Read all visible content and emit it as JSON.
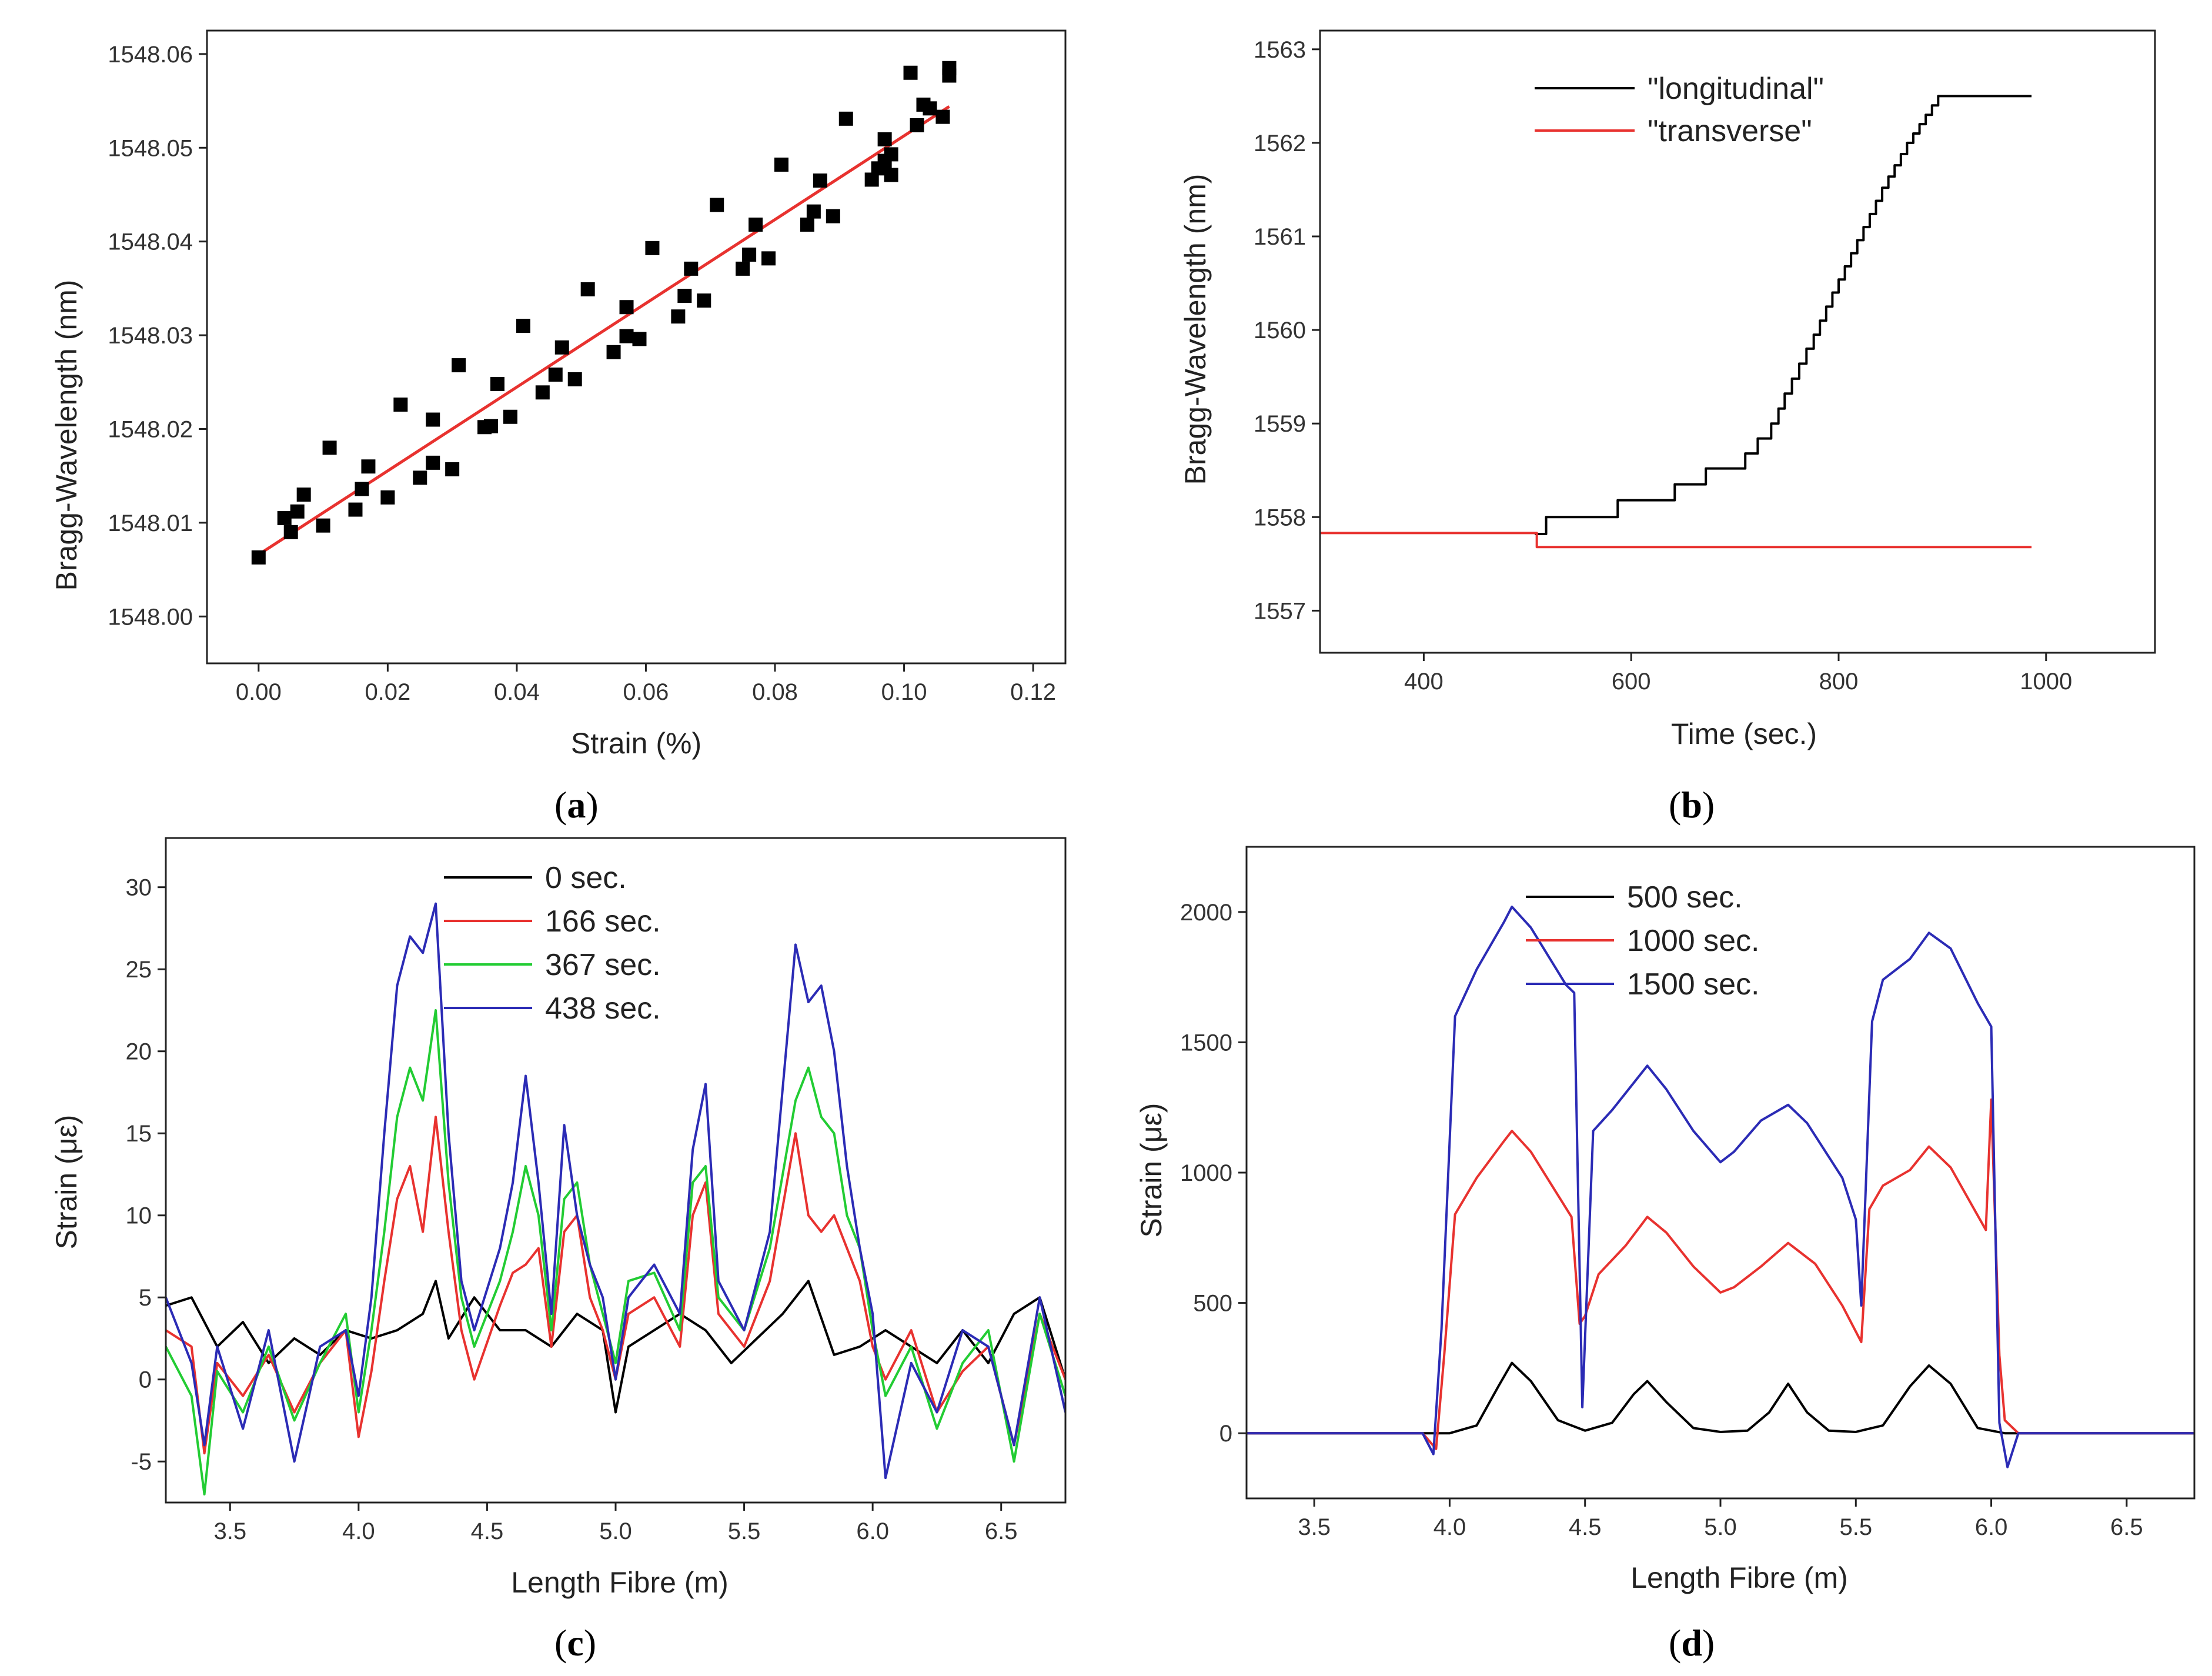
{
  "chart_data": [
    {
      "id": "a",
      "panel_label": "a",
      "type": "scatter",
      "title": "",
      "xlabel": "Strain (%)",
      "ylabel": "Bragg-Wavelength (nm)",
      "xlim": [
        -0.008,
        0.125
      ],
      "ylim": [
        1547.995,
        1548.0625
      ],
      "xticks": [
        0.0,
        0.02,
        0.04,
        0.06,
        0.08,
        0.1,
        0.12
      ],
      "xtick_labels": [
        "0.00",
        "0.02",
        "0.04",
        "0.06",
        "0.08",
        "0.10",
        "0.12"
      ],
      "yticks": [
        1548.0,
        1548.01,
        1548.02,
        1548.03,
        1548.04,
        1548.05,
        1548.06
      ],
      "ytick_labels": [
        "1548.00",
        "1548.01",
        "1548.02",
        "1548.03",
        "1548.04",
        "1548.05",
        "1548.06"
      ],
      "grid": false,
      "colors": {
        "points": "#000000",
        "fit": "#e8322f"
      },
      "fit_line": {
        "x": [
          0.0,
          0.107
        ],
        "y": [
          1548.0066,
          1548.0544
        ]
      },
      "points": {
        "x": [
          0.0,
          0.004,
          0.005,
          0.006,
          0.007,
          0.01,
          0.011,
          0.015,
          0.016,
          0.017,
          0.02,
          0.022,
          0.025,
          0.027,
          0.027,
          0.03,
          0.031,
          0.035,
          0.036,
          0.037,
          0.039,
          0.041,
          0.044,
          0.046,
          0.047,
          0.049,
          0.051,
          0.055,
          0.057,
          0.057,
          0.059,
          0.061,
          0.065,
          0.066,
          0.067,
          0.069,
          0.071,
          0.075,
          0.076,
          0.077,
          0.079,
          0.081,
          0.085,
          0.086,
          0.087,
          0.089,
          0.091,
          0.095,
          0.096,
          0.097,
          0.097,
          0.098,
          0.098,
          0.101,
          0.102,
          0.103,
          0.104,
          0.106,
          0.107,
          0.107
        ],
        "y": [
          1548.0063,
          1548.0105,
          1548.009,
          1548.0112,
          1548.013,
          1548.0097,
          1548.018,
          1548.0114,
          1548.0136,
          1548.016,
          1548.0127,
          1548.0226,
          1548.0148,
          1548.0164,
          1548.021,
          1548.0157,
          1548.0268,
          1548.0202,
          1548.0203,
          1548.0248,
          1548.0213,
          1548.031,
          1548.0239,
          1548.0258,
          1548.0287,
          1548.0253,
          1548.0349,
          1548.0282,
          1548.0299,
          1548.033,
          1548.0296,
          1548.0393,
          1548.032,
          1548.0342,
          1548.0371,
          1548.0337,
          1548.0439,
          1548.0371,
          1548.0386,
          1548.0418,
          1548.0382,
          1548.0482,
          1548.0418,
          1548.0432,
          1548.0465,
          1548.0427,
          1548.0531,
          1548.0466,
          1548.0478,
          1548.0509,
          1548.0486,
          1548.0471,
          1548.0493,
          1548.058,
          1548.0524,
          1548.0546,
          1548.0542,
          1548.0533,
          1548.0577,
          1548.0585
        ]
      }
    },
    {
      "id": "b",
      "panel_label": "b",
      "type": "line",
      "title": "",
      "xlabel": "Time (sec.)",
      "ylabel": "Bragg-Wavelength (nm)",
      "xlim": [
        300,
        1105
      ],
      "ylim": [
        1556.55,
        1563.2
      ],
      "xticks": [
        400,
        600,
        800,
        1000
      ],
      "xtick_labels": [
        "400",
        "600",
        "800",
        "1000"
      ],
      "yticks": [
        1557,
        1558,
        1559,
        1560,
        1561,
        1562,
        1563
      ],
      "ytick_labels": [
        "1557",
        "1558",
        "1559",
        "1560",
        "1561",
        "1562",
        "1563"
      ],
      "grid": false,
      "legend": {
        "placement": "top-center"
      },
      "series": [
        {
          "name": "\"longitudinal\"",
          "color": "#000000",
          "step": true,
          "x": [
            507,
            518,
            587,
            642,
            672,
            710,
            722,
            735,
            742,
            748,
            755,
            762,
            769,
            776,
            782,
            788,
            794,
            800,
            806,
            812,
            818,
            824,
            830,
            836,
            842,
            848,
            854,
            860,
            866,
            872,
            878,
            884,
            890,
            896,
            902,
            908,
            914,
            920,
            926,
            932,
            938,
            944,
            950,
            956,
            962,
            968,
            974,
            980,
            986
          ],
          "y": [
            1557.82,
            1558.0,
            1558.18,
            1558.35,
            1558.52,
            1558.68,
            1558.84,
            1559.0,
            1559.16,
            1559.32,
            1559.48,
            1559.64,
            1559.8,
            1559.95,
            1560.1,
            1560.25,
            1560.4,
            1560.54,
            1560.68,
            1560.82,
            1560.96,
            1561.1,
            1561.24,
            1561.38,
            1561.52,
            1561.64,
            1561.76,
            1561.88,
            1562.0,
            1562.1,
            1562.2,
            1562.3,
            1562.4,
            1562.5,
            1562.5,
            1562.5,
            1562.5,
            1562.5,
            1562.5,
            1562.5,
            1562.5,
            1562.5,
            1562.5,
            1562.5,
            1562.5,
            1562.5,
            1562.5,
            1562.5,
            1562.5
          ]
        },
        {
          "name": "\"transverse\"",
          "color": "#e8322f",
          "step": true,
          "x": [
            300,
            507,
            509,
            986
          ],
          "y": [
            1557.83,
            1557.83,
            1557.68,
            1557.68
          ]
        }
      ]
    },
    {
      "id": "c",
      "panel_label": "c",
      "type": "line",
      "title": "",
      "xlabel": "Length Fibre (m)",
      "ylabel": "Strain (με)",
      "xlim": [
        3.25,
        6.75
      ],
      "ylim": [
        -7.5,
        33
      ],
      "xticks": [
        3.5,
        4.0,
        4.5,
        5.0,
        5.5,
        6.0,
        6.5
      ],
      "xtick_labels": [
        "3.5",
        "4.0",
        "4.5",
        "5.0",
        "5.5",
        "6.0",
        "6.5"
      ],
      "yticks": [
        -5,
        0,
        5,
        10,
        15,
        20,
        25,
        30
      ],
      "ytick_labels": [
        "-5",
        "0",
        "5",
        "10",
        "15",
        "20",
        "25",
        "30"
      ],
      "grid": false,
      "legend": {
        "placement": "top-center"
      },
      "series": [
        {
          "name": "0 sec.",
          "color": "#000000",
          "x": [
            3.25,
            3.35,
            3.45,
            3.55,
            3.65,
            3.75,
            3.85,
            3.95,
            4.05,
            4.15,
            4.25,
            4.3,
            4.35,
            4.45,
            4.55,
            4.65,
            4.75,
            4.85,
            4.95,
            5.0,
            5.05,
            5.15,
            5.25,
            5.35,
            5.45,
            5.55,
            5.65,
            5.75,
            5.85,
            5.95,
            6.05,
            6.15,
            6.25,
            6.35,
            6.45,
            6.55,
            6.65,
            6.75
          ],
          "y": [
            4.5,
            5.0,
            2.0,
            3.5,
            1.0,
            2.5,
            1.5,
            3.0,
            2.5,
            3.0,
            4.0,
            6.0,
            2.5,
            5.0,
            3.0,
            3.0,
            2.0,
            4.0,
            3.0,
            -2.0,
            2.0,
            3.0,
            4.0,
            3.0,
            1.0,
            2.5,
            4.0,
            6.0,
            1.5,
            2.0,
            3.0,
            2.0,
            1.0,
            3.0,
            1.0,
            4.0,
            5.0,
            0.0
          ]
        },
        {
          "name": "166 sec.",
          "color": "#e8322f",
          "x": [
            3.25,
            3.35,
            3.4,
            3.45,
            3.55,
            3.65,
            3.75,
            3.85,
            3.95,
            4.0,
            4.05,
            4.1,
            4.15,
            4.2,
            4.25,
            4.3,
            4.35,
            4.4,
            4.45,
            4.55,
            4.6,
            4.65,
            4.7,
            4.75,
            4.8,
            4.85,
            4.9,
            4.95,
            5.0,
            5.05,
            5.15,
            5.25,
            5.3,
            5.35,
            5.4,
            5.5,
            5.6,
            5.7,
            5.75,
            5.8,
            5.85,
            5.9,
            5.95,
            6.0,
            6.05,
            6.15,
            6.25,
            6.35,
            6.45,
            6.55,
            6.65,
            6.75
          ],
          "y": [
            3.0,
            2.0,
            -4.5,
            1.0,
            -1.0,
            1.5,
            -2.0,
            1.0,
            3.0,
            -3.5,
            0.5,
            6.0,
            11.0,
            13.0,
            9.0,
            16.0,
            9.0,
            3.0,
            0.0,
            4.5,
            6.5,
            7.0,
            8.0,
            2.0,
            9.0,
            10.0,
            5.0,
            3.0,
            0.0,
            4.0,
            5.0,
            2.0,
            10.0,
            12.0,
            4.0,
            2.0,
            6.0,
            15.0,
            10.0,
            9.0,
            10.0,
            8.0,
            6.0,
            2.0,
            0.0,
            3.0,
            -2.0,
            0.5,
            2.0,
            -4.0,
            4.0,
            0.0
          ]
        },
        {
          "name": "367 sec.",
          "color": "#22cc33",
          "x": [
            3.25,
            3.35,
            3.4,
            3.45,
            3.55,
            3.65,
            3.75,
            3.85,
            3.95,
            4.0,
            4.05,
            4.1,
            4.15,
            4.2,
            4.25,
            4.3,
            4.35,
            4.4,
            4.45,
            4.55,
            4.6,
            4.65,
            4.7,
            4.75,
            4.8,
            4.85,
            4.9,
            4.95,
            5.0,
            5.05,
            5.15,
            5.25,
            5.3,
            5.35,
            5.4,
            5.5,
            5.6,
            5.7,
            5.75,
            5.8,
            5.85,
            5.9,
            5.95,
            6.0,
            6.05,
            6.15,
            6.25,
            6.35,
            6.45,
            6.55,
            6.65,
            6.75
          ],
          "y": [
            2.0,
            -1.0,
            -7.0,
            0.5,
            -2.0,
            2.0,
            -2.5,
            1.0,
            4.0,
            -2.0,
            3.0,
            9.0,
            16.0,
            19.0,
            17.0,
            22.5,
            12.0,
            5.0,
            2.0,
            6.0,
            9.0,
            13.0,
            10.0,
            3.0,
            11.0,
            12.0,
            7.0,
            4.0,
            1.0,
            6.0,
            6.5,
            3.0,
            12.0,
            13.0,
            5.0,
            3.0,
            8.0,
            17.0,
            19.0,
            16.0,
            15.0,
            10.0,
            8.0,
            3.0,
            -1.0,
            2.0,
            -3.0,
            1.0,
            3.0,
            -5.0,
            4.0,
            -1.0
          ]
        },
        {
          "name": "438 sec.",
          "color": "#2b2bb5",
          "x": [
            3.25,
            3.35,
            3.4,
            3.45,
            3.55,
            3.65,
            3.75,
            3.85,
            3.95,
            4.0,
            4.05,
            4.1,
            4.15,
            4.2,
            4.25,
            4.3,
            4.35,
            4.4,
            4.45,
            4.55,
            4.6,
            4.65,
            4.7,
            4.75,
            4.8,
            4.85,
            4.9,
            4.95,
            5.0,
            5.05,
            5.15,
            5.25,
            5.3,
            5.35,
            5.4,
            5.5,
            5.6,
            5.7,
            5.75,
            5.8,
            5.85,
            5.9,
            5.95,
            6.0,
            6.05,
            6.15,
            6.25,
            6.35,
            6.45,
            6.55,
            6.65,
            6.75
          ],
          "y": [
            5.0,
            1.0,
            -4.0,
            2.0,
            -3.0,
            3.0,
            -5.0,
            2.0,
            3.0,
            -1.0,
            5.0,
            15.0,
            24.0,
            27.0,
            26.0,
            29.0,
            15.0,
            6.0,
            3.0,
            8.0,
            12.0,
            18.5,
            12.0,
            4.0,
            15.5,
            10.0,
            7.0,
            5.0,
            0.0,
            5.0,
            7.0,
            4.0,
            14.0,
            18.0,
            6.0,
            3.0,
            9.0,
            26.5,
            23.0,
            24.0,
            20.0,
            13.0,
            8.0,
            4.0,
            -6.0,
            1.0,
            -2.0,
            3.0,
            2.0,
            -4.0,
            5.0,
            -2.0
          ]
        }
      ]
    },
    {
      "id": "d",
      "panel_label": "d",
      "type": "line",
      "title": "",
      "xlabel": "Length Fibre (m)",
      "ylabel": "Strain (με)",
      "xlim": [
        3.25,
        6.75
      ],
      "ylim": [
        -250,
        2250
      ],
      "xticks": [
        3.5,
        4.0,
        4.5,
        5.0,
        5.5,
        6.0,
        6.5
      ],
      "xtick_labels": [
        "3.5",
        "4.0",
        "4.5",
        "5.0",
        "5.5",
        "6.0",
        "6.5"
      ],
      "yticks": [
        0,
        500,
        1000,
        1500,
        2000
      ],
      "ytick_labels": [
        "0",
        "500",
        "1000",
        "1500",
        "2000"
      ],
      "grid": false,
      "legend": {
        "placement": "top-center"
      },
      "series": [
        {
          "name": "500 sec.",
          "color": "#000000",
          "x": [
            3.25,
            3.9,
            4.0,
            4.1,
            4.18,
            4.23,
            4.3,
            4.4,
            4.5,
            4.6,
            4.68,
            4.73,
            4.8,
            4.9,
            5.0,
            5.1,
            5.18,
            5.25,
            5.32,
            5.4,
            5.5,
            5.6,
            5.7,
            5.77,
            5.85,
            5.95,
            6.05,
            6.15,
            6.75
          ],
          "y": [
            0,
            0,
            0,
            30,
            180,
            270,
            200,
            50,
            10,
            40,
            150,
            200,
            120,
            20,
            5,
            10,
            80,
            190,
            80,
            10,
            5,
            30,
            180,
            260,
            190,
            20,
            0,
            0,
            0
          ]
        },
        {
          "name": "1000 sec.",
          "color": "#e8322f",
          "x": [
            3.25,
            3.9,
            3.95,
            3.98,
            4.02,
            4.1,
            4.2,
            4.23,
            4.3,
            4.45,
            4.48,
            4.5,
            4.55,
            4.65,
            4.73,
            4.8,
            4.9,
            5.0,
            5.05,
            5.15,
            5.25,
            5.35,
            5.45,
            5.52,
            5.55,
            5.6,
            5.7,
            5.77,
            5.85,
            5.98,
            6.0,
            6.03,
            6.05,
            6.1,
            6.75
          ],
          "y": [
            0,
            0,
            -60,
            300,
            840,
            980,
            1120,
            1160,
            1080,
            830,
            420,
            450,
            610,
            720,
            830,
            770,
            640,
            540,
            560,
            640,
            730,
            650,
            490,
            350,
            860,
            950,
            1010,
            1100,
            1020,
            780,
            1280,
            300,
            50,
            0,
            0
          ]
        },
        {
          "name": "1500 sec.",
          "color": "#2b2bb5",
          "x": [
            3.25,
            3.9,
            3.94,
            3.97,
            4.02,
            4.1,
            4.2,
            4.23,
            4.3,
            4.43,
            4.46,
            4.49,
            4.53,
            4.6,
            4.73,
            4.8,
            4.9,
            5.0,
            5.05,
            5.15,
            5.25,
            5.32,
            5.45,
            5.5,
            5.52,
            5.56,
            5.6,
            5.7,
            5.77,
            5.85,
            5.95,
            6.0,
            6.03,
            6.06,
            6.1,
            6.75
          ],
          "y": [
            0,
            0,
            -80,
            400,
            1600,
            1780,
            1960,
            2020,
            1940,
            1720,
            1690,
            100,
            1160,
            1240,
            1410,
            1320,
            1160,
            1040,
            1080,
            1200,
            1260,
            1190,
            980,
            820,
            490,
            1580,
            1740,
            1820,
            1920,
            1860,
            1650,
            1560,
            40,
            -130,
            0,
            0
          ]
        }
      ]
    }
  ]
}
